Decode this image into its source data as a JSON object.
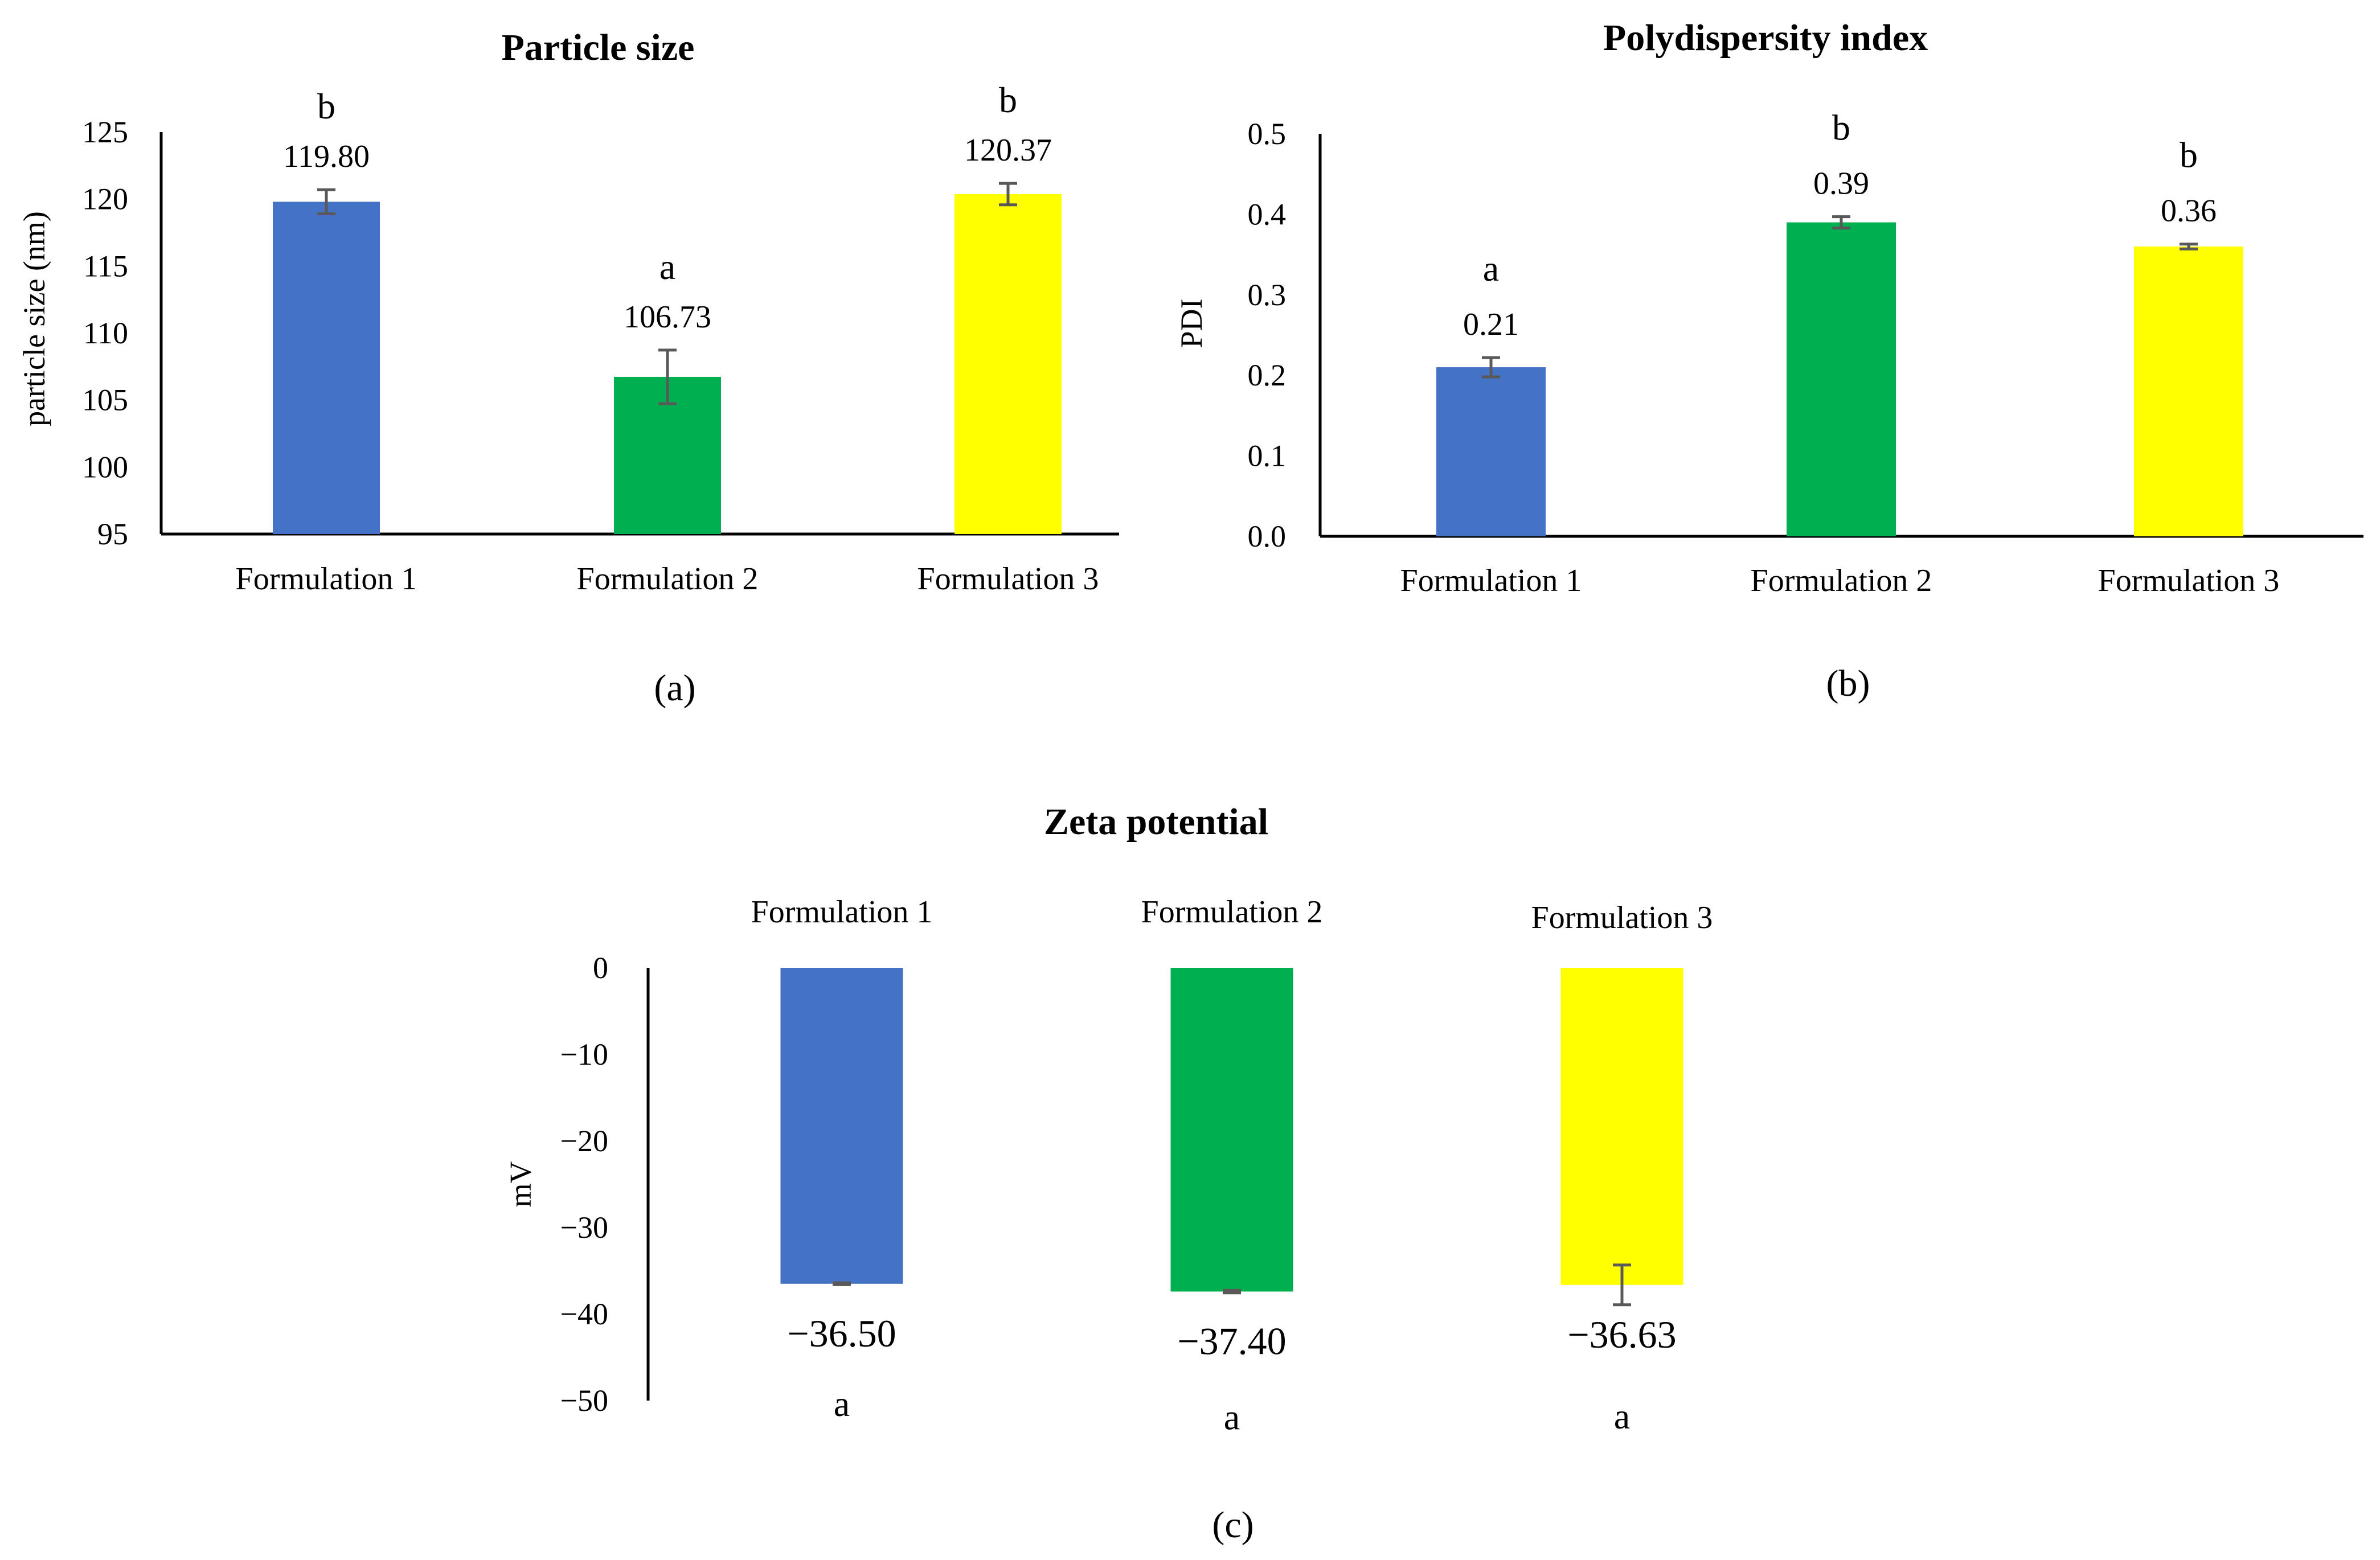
{
  "chart_data": [
    {
      "panel": "(a)",
      "type": "bar",
      "title": "Particle size",
      "ylabel": "particle size (nm)",
      "xlabel": "",
      "ylim": [
        95,
        125
      ],
      "yticks": [
        95,
        100,
        105,
        110,
        115,
        120,
        125
      ],
      "categories": [
        "Formulation 1",
        "Formulation 2",
        "Formulation 3"
      ],
      "values": [
        119.8,
        106.73,
        120.37
      ],
      "value_labels": [
        "119.80",
        "106.73",
        "120.37"
      ],
      "errors": [
        0.9,
        2.0,
        0.8
      ],
      "letters": [
        "b",
        "a",
        "b"
      ],
      "colors": [
        "#4472C4",
        "#00B050",
        "#FFFF00"
      ]
    },
    {
      "panel": "(b)",
      "type": "bar",
      "title": "Polydispersity index",
      "ylabel": "PDI",
      "xlabel": "",
      "ylim": [
        0,
        0.5
      ],
      "yticks": [
        "0.0",
        "0.1",
        "0.2",
        "0.3",
        "0.4",
        "0.5"
      ],
      "categories": [
        "Formulation 1",
        "Formulation 2",
        "Formulation 3"
      ],
      "values": [
        0.21,
        0.39,
        0.36
      ],
      "value_labels": [
        "0.21",
        "0.39",
        "0.36"
      ],
      "errors": [
        0.012,
        0.007,
        0.003
      ],
      "letters": [
        "a",
        "b",
        "b"
      ],
      "colors": [
        "#4472C4",
        "#00B050",
        "#FFFF00"
      ]
    },
    {
      "panel": "(c)",
      "type": "bar",
      "title": "Zeta potential",
      "ylabel": "mV",
      "xlabel": "",
      "ylim": [
        -50,
        0
      ],
      "yticks": [
        "0",
        "−10",
        "−20",
        "−30",
        "−40",
        "−50"
      ],
      "categories": [
        "Formulation 1",
        "Formulation 2",
        "Formulation 3"
      ],
      "values": [
        -36.5,
        -37.4,
        -36.63
      ],
      "value_labels": [
        "−36.50",
        "−37.40",
        "−36.63"
      ],
      "errors": [
        0.1,
        0.15,
        2.3
      ],
      "letters": [
        "a",
        "a",
        "a"
      ],
      "colors": [
        "#4472C4",
        "#00B050",
        "#FFFF00"
      ]
    }
  ]
}
